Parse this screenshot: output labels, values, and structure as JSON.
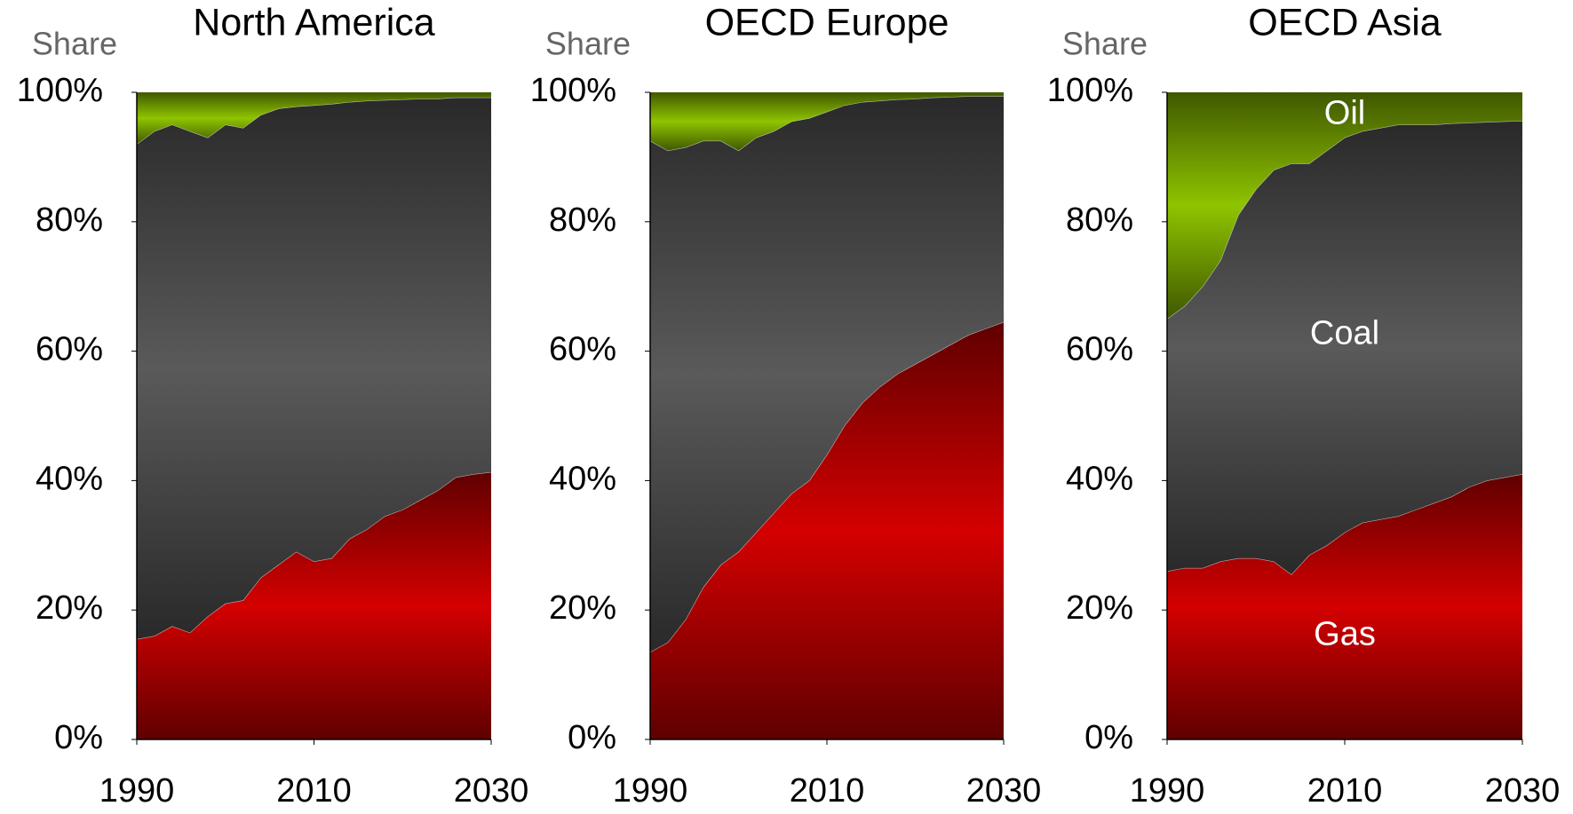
{
  "chart_data": [
    {
      "type": "area",
      "stacked": true,
      "title": "North America",
      "y_label": "Share",
      "x": [
        1990,
        1992,
        1994,
        1996,
        1998,
        2000,
        2002,
        2004,
        2006,
        2008,
        2010,
        2012,
        2014,
        2016,
        2018,
        2020,
        2022,
        2024,
        2026,
        2028,
        2030
      ],
      "series": [
        {
          "name": "Gas",
          "color": "#d40000",
          "values": [
            15.5,
            16,
            17.5,
            16.5,
            19,
            21,
            21.5,
            25,
            27,
            29,
            27.5,
            28,
            31,
            32.5,
            34.5,
            35.5,
            37,
            38.5,
            40.5,
            41,
            41.3
          ]
        },
        {
          "name": "Coal",
          "color": "#5a5a5a",
          "values": [
            76.5,
            78,
            77.5,
            77.5,
            74,
            74,
            73,
            71.5,
            70.5,
            68.8,
            70.5,
            70.2,
            67.5,
            66.2,
            64.3,
            63.4,
            62,
            60.5,
            58.7,
            58.2,
            57.9
          ]
        },
        {
          "name": "Oil",
          "color": "#8fc400",
          "values": [
            8,
            6,
            5,
            6,
            7,
            5,
            5.5,
            3.5,
            2.5,
            2.2,
            2,
            1.8,
            1.5,
            1.3,
            1.2,
            1.1,
            1,
            1,
            0.8,
            0.8,
            0.8
          ]
        }
      ],
      "xlim": [
        1990,
        2030
      ],
      "xticks": [
        1990,
        2010,
        2030
      ],
      "ylim": [
        0,
        100
      ],
      "yticks": [
        {
          "value": 0,
          "label": "0%"
        },
        {
          "value": 20,
          "label": "20%"
        },
        {
          "value": 40,
          "label": "40%"
        },
        {
          "value": 60,
          "label": "60%"
        },
        {
          "value": 80,
          "label": "80%"
        },
        {
          "value": 100,
          "label": "100%"
        }
      ]
    },
    {
      "type": "area",
      "stacked": true,
      "title": "OECD Europe",
      "y_label": "Share",
      "x": [
        1990,
        1992,
        1994,
        1996,
        1998,
        2000,
        2002,
        2004,
        2006,
        2008,
        2010,
        2012,
        2014,
        2016,
        2018,
        2020,
        2022,
        2024,
        2026,
        2028,
        2030
      ],
      "series": [
        {
          "name": "Gas",
          "color": "#d40000",
          "values": [
            13.5,
            15,
            18.5,
            23.5,
            27,
            29,
            32,
            35,
            38,
            40,
            44,
            48.5,
            52,
            54.5,
            56.5,
            58,
            59.5,
            61,
            62.5,
            63.5,
            64.5
          ]
        },
        {
          "name": "Coal",
          "color": "#5a5a5a",
          "values": [
            79,
            76,
            73,
            69,
            65.5,
            62,
            61,
            59,
            57.5,
            56,
            53,
            49.5,
            46.5,
            44.2,
            42.4,
            41,
            39.7,
            38.3,
            36.9,
            35.9,
            34.9
          ]
        },
        {
          "name": "Oil",
          "color": "#8fc400",
          "values": [
            7.5,
            9,
            8.5,
            7.5,
            7.5,
            9,
            7,
            6,
            4.5,
            4,
            3,
            2,
            1.5,
            1.3,
            1.1,
            1,
            0.8,
            0.7,
            0.6,
            0.6,
            0.6
          ]
        }
      ],
      "xlim": [
        1990,
        2030
      ],
      "xticks": [
        1990,
        2010,
        2030
      ],
      "ylim": [
        0,
        100
      ],
      "yticks": [
        {
          "value": 0,
          "label": "0%"
        },
        {
          "value": 20,
          "label": "20%"
        },
        {
          "value": 40,
          "label": "40%"
        },
        {
          "value": 60,
          "label": "60%"
        },
        {
          "value": 80,
          "label": "80%"
        },
        {
          "value": 100,
          "label": "100%"
        }
      ]
    },
    {
      "type": "area",
      "stacked": true,
      "title": "OECD Asia",
      "y_label": "Share",
      "legend": "inline",
      "x": [
        1990,
        1992,
        1994,
        1996,
        1998,
        2000,
        2002,
        2004,
        2006,
        2008,
        2010,
        2012,
        2014,
        2016,
        2018,
        2020,
        2022,
        2024,
        2026,
        2028,
        2030
      ],
      "series": [
        {
          "name": "Gas",
          "color": "#d40000",
          "values": [
            26,
            26.5,
            26.5,
            27.5,
            28,
            28,
            27.5,
            25.5,
            28.5,
            30,
            32,
            33.5,
            34,
            34.5,
            35.5,
            36.5,
            37.5,
            39,
            40,
            40.5,
            41
          ]
        },
        {
          "name": "Coal",
          "color": "#5a5a5a",
          "values": [
            39,
            40.5,
            43.5,
            46.5,
            53,
            57,
            60.5,
            63.5,
            60.5,
            61,
            61,
            60.5,
            60.5,
            60.5,
            59.5,
            58.5,
            57.7,
            56.3,
            55.4,
            55,
            54.6
          ]
        },
        {
          "name": "Oil",
          "color": "#8fc400",
          "values": [
            35,
            33,
            30,
            26,
            19,
            15,
            12,
            11,
            11,
            9,
            7,
            6,
            5.5,
            5,
            5,
            5,
            4.8,
            4.7,
            4.6,
            4.5,
            4.4
          ]
        }
      ],
      "xlim": [
        1990,
        2030
      ],
      "xticks": [
        1990,
        2010,
        2030
      ],
      "ylim": [
        0,
        100
      ],
      "yticks": [
        {
          "value": 0,
          "label": "0%"
        },
        {
          "value": 20,
          "label": "20%"
        },
        {
          "value": 40,
          "label": "40%"
        },
        {
          "value": 60,
          "label": "60%"
        },
        {
          "value": 80,
          "label": "80%"
        },
        {
          "value": 100,
          "label": "100%"
        }
      ]
    }
  ]
}
